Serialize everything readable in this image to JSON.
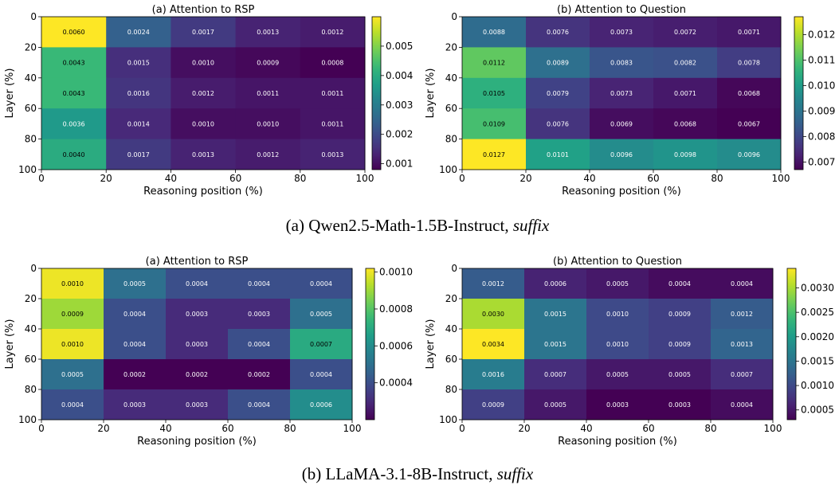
{
  "figure": {
    "captions": [
      {
        "main": "(a) Qwen2.5-Math-1.5B-Instruct, ",
        "emph": "suffix"
      },
      {
        "main": "(b) LLaMA-3.1-8B-Instruct, ",
        "emph": "suffix"
      }
    ]
  },
  "chart_data": [
    {
      "type": "heatmap",
      "title": "(a) Attention to RSP",
      "xlabel": "Reasoning position (%)",
      "ylabel": "Layer (%)",
      "x_ticks": [
        "0",
        "20",
        "40",
        "60",
        "80",
        "100"
      ],
      "y_ticks": [
        "0",
        "20",
        "40",
        "60",
        "80",
        "100"
      ],
      "x_bins": [
        "0-20",
        "20-40",
        "40-60",
        "60-80",
        "80-100"
      ],
      "y_bins": [
        "0-20",
        "20-40",
        "40-60",
        "60-80",
        "80-100"
      ],
      "values": [
        [
          0.006,
          0.0024,
          0.0017,
          0.0013,
          0.0012
        ],
        [
          0.0043,
          0.0015,
          0.001,
          0.0009,
          0.0008
        ],
        [
          0.0043,
          0.0016,
          0.0012,
          0.0011,
          0.0011
        ],
        [
          0.0036,
          0.0014,
          0.001,
          0.001,
          0.0011
        ],
        [
          0.004,
          0.0017,
          0.0013,
          0.0012,
          0.0013
        ]
      ],
      "cell_labels": [
        [
          "0.0060",
          "0.0024",
          "0.0017",
          "0.0013",
          "0.0012"
        ],
        [
          "0.0043",
          "0.0015",
          "0.0010",
          "0.0009",
          "0.0008"
        ],
        [
          "0.0043",
          "0.0016",
          "0.0012",
          "0.0011",
          "0.0011"
        ],
        [
          "0.0036",
          "0.0014",
          "0.0010",
          "0.0010",
          "0.0011"
        ],
        [
          "0.0040",
          "0.0017",
          "0.0013",
          "0.0012",
          "0.0013"
        ]
      ],
      "vmin": 0.0008,
      "vmax": 0.006,
      "colorbar_ticks": [
        0.001,
        0.002,
        0.003,
        0.004,
        0.005
      ],
      "colorbar_tick_labels": [
        "0.001",
        "0.002",
        "0.003",
        "0.004",
        "0.005"
      ],
      "colormap": "viridis",
      "grid": false
    },
    {
      "type": "heatmap",
      "title": "(b) Attention to Question",
      "xlabel": "Reasoning position (%)",
      "ylabel": "Layer (%)",
      "x_ticks": [
        "0",
        "20",
        "40",
        "60",
        "80",
        "100"
      ],
      "y_ticks": [
        "0",
        "20",
        "40",
        "60",
        "80",
        "100"
      ],
      "x_bins": [
        "0-20",
        "20-40",
        "40-60",
        "60-80",
        "80-100"
      ],
      "y_bins": [
        "0-20",
        "20-40",
        "40-60",
        "60-80",
        "80-100"
      ],
      "values": [
        [
          0.0088,
          0.0076,
          0.0073,
          0.0072,
          0.0071
        ],
        [
          0.0112,
          0.0089,
          0.0083,
          0.0082,
          0.0078
        ],
        [
          0.0105,
          0.0079,
          0.0073,
          0.0071,
          0.0068
        ],
        [
          0.0109,
          0.0076,
          0.0069,
          0.0068,
          0.0067
        ],
        [
          0.0127,
          0.0101,
          0.0096,
          0.0098,
          0.0096
        ]
      ],
      "cell_labels": [
        [
          "0.0088",
          "0.0076",
          "0.0073",
          "0.0072",
          "0.0071"
        ],
        [
          "0.0112",
          "0.0089",
          "0.0083",
          "0.0082",
          "0.0078"
        ],
        [
          "0.0105",
          "0.0079",
          "0.0073",
          "0.0071",
          "0.0068"
        ],
        [
          "0.0109",
          "0.0076",
          "0.0069",
          "0.0068",
          "0.0067"
        ],
        [
          "0.0127",
          "0.0101",
          "0.0096",
          "0.0098",
          "0.0096"
        ]
      ],
      "vmin": 0.0067,
      "vmax": 0.0127,
      "colorbar_ticks": [
        0.007,
        0.008,
        0.009,
        0.01,
        0.011,
        0.012
      ],
      "colorbar_tick_labels": [
        "0.007",
        "0.008",
        "0.009",
        "0.010",
        "0.011",
        "0.012"
      ],
      "colormap": "viridis",
      "grid": false
    },
    {
      "type": "heatmap",
      "title": "(a) Attention to RSP",
      "xlabel": "Reasoning position (%)",
      "ylabel": "Layer (%)",
      "x_ticks": [
        "0",
        "20",
        "40",
        "60",
        "80",
        "100"
      ],
      "y_ticks": [
        "0",
        "20",
        "40",
        "60",
        "80",
        "100"
      ],
      "x_bins": [
        "0-20",
        "20-40",
        "40-60",
        "60-80",
        "80-100"
      ],
      "y_bins": [
        "0-20",
        "20-40",
        "40-60",
        "60-80",
        "80-100"
      ],
      "values": [
        [
          0.001,
          0.0005,
          0.0004,
          0.0004,
          0.0004
        ],
        [
          0.0009,
          0.0004,
          0.0003,
          0.0003,
          0.0005
        ],
        [
          0.001,
          0.0004,
          0.0003,
          0.0004,
          0.0007
        ],
        [
          0.0005,
          0.0002,
          0.0002,
          0.0002,
          0.0004
        ],
        [
          0.0004,
          0.0003,
          0.0003,
          0.0004,
          0.0006
        ]
      ],
      "cell_labels": [
        [
          "0.0010",
          "0.0005",
          "0.0004",
          "0.0004",
          "0.0004"
        ],
        [
          "0.0009",
          "0.0004",
          "0.0003",
          "0.0003",
          "0.0005"
        ],
        [
          "0.0010",
          "0.0004",
          "0.0003",
          "0.0004",
          "0.0007"
        ],
        [
          "0.0005",
          "0.0002",
          "0.0002",
          "0.0002",
          "0.0004"
        ],
        [
          "0.0004",
          "0.0003",
          "0.0003",
          "0.0004",
          "0.0006"
        ]
      ],
      "vmin": 0.0002,
      "vmax": 0.00102,
      "colorbar_ticks": [
        0.0004,
        0.0006,
        0.0008,
        0.001
      ],
      "colorbar_tick_labels": [
        "0.0004",
        "0.0006",
        "0.0008",
        "0.0010"
      ],
      "colormap": "viridis",
      "grid": false
    },
    {
      "type": "heatmap",
      "title": "(b) Attention to Question",
      "xlabel": "Reasoning position (%)",
      "ylabel": "Layer (%)",
      "x_ticks": [
        "0",
        "20",
        "40",
        "60",
        "80",
        "100"
      ],
      "y_ticks": [
        "0",
        "20",
        "40",
        "60",
        "80",
        "100"
      ],
      "x_bins": [
        "0-20",
        "20-40",
        "40-60",
        "60-80",
        "80-100"
      ],
      "y_bins": [
        "0-20",
        "20-40",
        "40-60",
        "60-80",
        "80-100"
      ],
      "values": [
        [
          0.0012,
          0.0006,
          0.0005,
          0.0004,
          0.0004
        ],
        [
          0.003,
          0.0015,
          0.001,
          0.0009,
          0.0012
        ],
        [
          0.0034,
          0.0015,
          0.001,
          0.0009,
          0.0013
        ],
        [
          0.0016,
          0.0007,
          0.0005,
          0.0005,
          0.0007
        ],
        [
          0.0009,
          0.0005,
          0.0003,
          0.0003,
          0.0004
        ]
      ],
      "cell_labels": [
        [
          "0.0012",
          "0.0006",
          "0.0005",
          "0.0004",
          "0.0004"
        ],
        [
          "0.0030",
          "0.0015",
          "0.0010",
          "0.0009",
          "0.0012"
        ],
        [
          "0.0034",
          "0.0015",
          "0.0010",
          "0.0009",
          "0.0013"
        ],
        [
          "0.0016",
          "0.0007",
          "0.0005",
          "0.0005",
          "0.0007"
        ],
        [
          "0.0009",
          "0.0005",
          "0.0003",
          "0.0003",
          "0.0004"
        ]
      ],
      "vmin": 0.0003,
      "vmax": 0.0034,
      "colorbar_ticks": [
        0.0005,
        0.001,
        0.0015,
        0.002,
        0.0025,
        0.003
      ],
      "colorbar_tick_labels": [
        "0.0005",
        "0.0010",
        "0.0015",
        "0.0020",
        "0.0025",
        "0.0030"
      ],
      "colormap": "viridis",
      "grid": false
    }
  ]
}
